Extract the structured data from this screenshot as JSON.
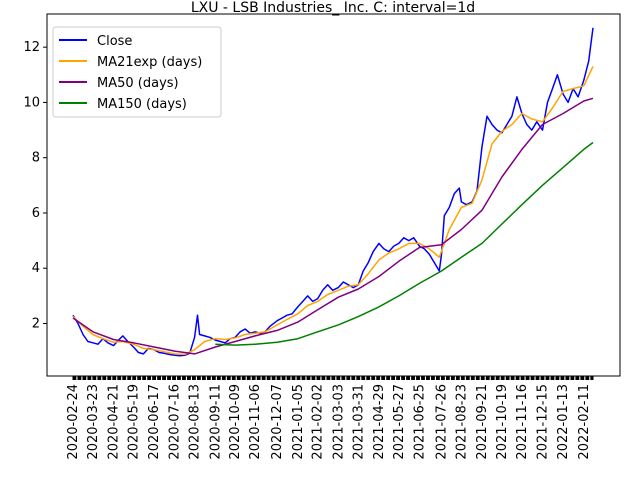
{
  "chart_data": {
    "type": "line",
    "title": "LXU - LSB Industries_ Inc. C: interval=1d",
    "xlabel": "",
    "ylabel": "",
    "ylim": [
      0.1,
      13.2
    ],
    "yticks": [
      2,
      4,
      6,
      8,
      10,
      12
    ],
    "grid": false,
    "legend_position": "top-left",
    "x_start": "2020-02-24",
    "x_end": "2022-02-24",
    "xticks": [
      "2020-02-24",
      "2020-03-23",
      "2020-04-21",
      "2020-05-19",
      "2020-06-17",
      "2020-07-16",
      "2020-08-13",
      "2020-09-11",
      "2020-10-09",
      "2020-11-06",
      "2020-12-07",
      "2021-01-05",
      "2021-02-02",
      "2021-03-03",
      "2021-03-31",
      "2021-04-29",
      "2021-05-27",
      "2021-06-25",
      "2021-07-26",
      "2021-08-23",
      "2021-09-21",
      "2021-10-19",
      "2021-11-16",
      "2021-12-15",
      "2022-01-13",
      "2022-02-11"
    ],
    "series": [
      {
        "name": "Close",
        "color": "#0000ff",
        "points": [
          [
            "2020-02-24",
            2.3
          ],
          [
            "2020-03-02",
            2.0
          ],
          [
            "2020-03-09",
            1.6
          ],
          [
            "2020-03-16",
            1.35
          ],
          [
            "2020-03-23",
            1.3
          ],
          [
            "2020-03-30",
            1.25
          ],
          [
            "2020-04-06",
            1.45
          ],
          [
            "2020-04-13",
            1.3
          ],
          [
            "2020-04-21",
            1.2
          ],
          [
            "2020-04-28",
            1.4
          ],
          [
            "2020-05-04",
            1.55
          ],
          [
            "2020-05-11",
            1.35
          ],
          [
            "2020-05-19",
            1.15
          ],
          [
            "2020-05-26",
            0.95
          ],
          [
            "2020-06-02",
            0.9
          ],
          [
            "2020-06-09",
            1.1
          ],
          [
            "2020-06-17",
            1.05
          ],
          [
            "2020-06-24",
            0.95
          ],
          [
            "2020-07-01",
            0.92
          ],
          [
            "2020-07-08",
            0.88
          ],
          [
            "2020-07-16",
            0.85
          ],
          [
            "2020-07-23",
            0.83
          ],
          [
            "2020-07-30",
            0.85
          ],
          [
            "2020-08-06",
            0.92
          ],
          [
            "2020-08-13",
            1.5
          ],
          [
            "2020-08-17",
            2.3
          ],
          [
            "2020-08-20",
            1.6
          ],
          [
            "2020-08-27",
            1.55
          ],
          [
            "2020-09-03",
            1.5
          ],
          [
            "2020-09-11",
            1.4
          ],
          [
            "2020-09-18",
            1.35
          ],
          [
            "2020-09-25",
            1.3
          ],
          [
            "2020-10-02",
            1.45
          ],
          [
            "2020-10-09",
            1.5
          ],
          [
            "2020-10-16",
            1.7
          ],
          [
            "2020-10-23",
            1.8
          ],
          [
            "2020-10-30",
            1.65
          ],
          [
            "2020-11-06",
            1.7
          ],
          [
            "2020-11-13",
            1.65
          ],
          [
            "2020-11-20",
            1.7
          ],
          [
            "2020-11-27",
            1.9
          ],
          [
            "2020-12-07",
            2.1
          ],
          [
            "2020-12-14",
            2.2
          ],
          [
            "2020-12-21",
            2.3
          ],
          [
            "2020-12-28",
            2.35
          ],
          [
            "2021-01-05",
            2.6
          ],
          [
            "2021-01-12",
            2.8
          ],
          [
            "2021-01-19",
            3.0
          ],
          [
            "2021-01-26",
            2.8
          ],
          [
            "2021-02-02",
            2.9
          ],
          [
            "2021-02-09",
            3.2
          ],
          [
            "2021-02-16",
            3.4
          ],
          [
            "2021-02-23",
            3.2
          ],
          [
            "2021-03-03",
            3.3
          ],
          [
            "2021-03-10",
            3.5
          ],
          [
            "2021-03-17",
            3.4
          ],
          [
            "2021-03-24",
            3.3
          ],
          [
            "2021-03-31",
            3.4
          ],
          [
            "2021-04-07",
            3.9
          ],
          [
            "2021-04-14",
            4.2
          ],
          [
            "2021-04-21",
            4.6
          ],
          [
            "2021-04-29",
            4.9
          ],
          [
            "2021-05-06",
            4.7
          ],
          [
            "2021-05-13",
            4.6
          ],
          [
            "2021-05-20",
            4.8
          ],
          [
            "2021-05-27",
            4.9
          ],
          [
            "2021-06-03",
            5.1
          ],
          [
            "2021-06-10",
            5.0
          ],
          [
            "2021-06-17",
            5.1
          ],
          [
            "2021-06-25",
            4.8
          ],
          [
            "2021-07-02",
            4.7
          ],
          [
            "2021-07-09",
            4.5
          ],
          [
            "2021-07-16",
            4.2
          ],
          [
            "2021-07-23",
            3.9
          ],
          [
            "2021-07-26",
            4.5
          ],
          [
            "2021-07-30",
            5.9
          ],
          [
            "2021-08-06",
            6.2
          ],
          [
            "2021-08-13",
            6.7
          ],
          [
            "2021-08-20",
            6.9
          ],
          [
            "2021-08-23",
            6.4
          ],
          [
            "2021-08-30",
            6.3
          ],
          [
            "2021-09-07",
            6.4
          ],
          [
            "2021-09-14",
            6.8
          ],
          [
            "2021-09-21",
            8.4
          ],
          [
            "2021-09-28",
            9.5
          ],
          [
            "2021-10-05",
            9.2
          ],
          [
            "2021-10-12",
            9.0
          ],
          [
            "2021-10-19",
            8.9
          ],
          [
            "2021-10-26",
            9.2
          ],
          [
            "2021-11-02",
            9.5
          ],
          [
            "2021-11-09",
            10.2
          ],
          [
            "2021-11-16",
            9.6
          ],
          [
            "2021-11-23",
            9.2
          ],
          [
            "2021-11-30",
            9.0
          ],
          [
            "2021-12-07",
            9.3
          ],
          [
            "2021-12-15",
            9.0
          ],
          [
            "2021-12-22",
            10.0
          ],
          [
            "2021-12-29",
            10.5
          ],
          [
            "2022-01-05",
            11.0
          ],
          [
            "2022-01-13",
            10.3
          ],
          [
            "2022-01-20",
            10.0
          ],
          [
            "2022-01-27",
            10.5
          ],
          [
            "2022-02-03",
            10.2
          ],
          [
            "2022-02-11",
            10.8
          ],
          [
            "2022-02-18",
            11.5
          ],
          [
            "2022-02-24",
            12.7
          ]
        ]
      },
      {
        "name": "MA21exp (days)",
        "color": "#ffa500",
        "points": [
          [
            "2020-02-24",
            2.25
          ],
          [
            "2020-03-09",
            1.9
          ],
          [
            "2020-03-23",
            1.6
          ],
          [
            "2020-04-06",
            1.45
          ],
          [
            "2020-04-21",
            1.32
          ],
          [
            "2020-05-04",
            1.35
          ],
          [
            "2020-05-19",
            1.25
          ],
          [
            "2020-06-02",
            1.1
          ],
          [
            "2020-06-17",
            1.05
          ],
          [
            "2020-07-01",
            0.98
          ],
          [
            "2020-07-16",
            0.9
          ],
          [
            "2020-07-30",
            0.88
          ],
          [
            "2020-08-13",
            1.05
          ],
          [
            "2020-08-27",
            1.35
          ],
          [
            "2020-09-11",
            1.45
          ],
          [
            "2020-09-25",
            1.42
          ],
          [
            "2020-10-09",
            1.48
          ],
          [
            "2020-10-23",
            1.6
          ],
          [
            "2020-11-06",
            1.65
          ],
          [
            "2020-11-20",
            1.7
          ],
          [
            "2020-12-07",
            1.95
          ],
          [
            "2020-12-21",
            2.15
          ],
          [
            "2021-01-05",
            2.35
          ],
          [
            "2021-01-19",
            2.65
          ],
          [
            "2021-02-02",
            2.8
          ],
          [
            "2021-02-16",
            3.05
          ],
          [
            "2021-03-03",
            3.2
          ],
          [
            "2021-03-17",
            3.35
          ],
          [
            "2021-03-31",
            3.4
          ],
          [
            "2021-04-14",
            3.8
          ],
          [
            "2021-04-29",
            4.3
          ],
          [
            "2021-05-13",
            4.55
          ],
          [
            "2021-05-27",
            4.7
          ],
          [
            "2021-06-10",
            4.9
          ],
          [
            "2021-06-25",
            4.9
          ],
          [
            "2021-07-09",
            4.7
          ],
          [
            "2021-07-23",
            4.4
          ],
          [
            "2021-08-06",
            5.4
          ],
          [
            "2021-08-23",
            6.2
          ],
          [
            "2021-09-07",
            6.35
          ],
          [
            "2021-09-21",
            7.2
          ],
          [
            "2021-10-05",
            8.5
          ],
          [
            "2021-10-19",
            8.95
          ],
          [
            "2021-11-02",
            9.2
          ],
          [
            "2021-11-16",
            9.6
          ],
          [
            "2021-11-30",
            9.4
          ],
          [
            "2021-12-15",
            9.3
          ],
          [
            "2021-12-29",
            9.8
          ],
          [
            "2022-01-13",
            10.4
          ],
          [
            "2022-01-27",
            10.5
          ],
          [
            "2022-02-11",
            10.6
          ],
          [
            "2022-02-24",
            11.3
          ]
        ]
      },
      {
        "name": "MA50 (days)",
        "color": "#800080",
        "points": [
          [
            "2020-02-24",
            2.2
          ],
          [
            "2020-03-23",
            1.7
          ],
          [
            "2020-04-21",
            1.42
          ],
          [
            "2020-05-19",
            1.3
          ],
          [
            "2020-06-17",
            1.15
          ],
          [
            "2020-07-16",
            1.0
          ],
          [
            "2020-08-13",
            0.9
          ],
          [
            "2020-09-11",
            1.15
          ],
          [
            "2020-10-09",
            1.35
          ],
          [
            "2020-11-06",
            1.55
          ],
          [
            "2020-12-07",
            1.75
          ],
          [
            "2021-01-05",
            2.05
          ],
          [
            "2021-02-02",
            2.5
          ],
          [
            "2021-03-03",
            2.95
          ],
          [
            "2021-03-31",
            3.25
          ],
          [
            "2021-04-29",
            3.7
          ],
          [
            "2021-05-27",
            4.25
          ],
          [
            "2021-06-25",
            4.75
          ],
          [
            "2021-07-26",
            4.85
          ],
          [
            "2021-08-23",
            5.4
          ],
          [
            "2021-09-21",
            6.1
          ],
          [
            "2021-10-19",
            7.3
          ],
          [
            "2021-11-16",
            8.3
          ],
          [
            "2021-12-15",
            9.2
          ],
          [
            "2022-01-13",
            9.6
          ],
          [
            "2022-02-11",
            10.05
          ],
          [
            "2022-02-24",
            10.15
          ]
        ]
      },
      {
        "name": "MA150 (days)",
        "color": "#008000",
        "points": [
          [
            "2020-09-11",
            1.25
          ],
          [
            "2020-10-09",
            1.22
          ],
          [
            "2020-11-06",
            1.25
          ],
          [
            "2020-12-07",
            1.32
          ],
          [
            "2021-01-05",
            1.45
          ],
          [
            "2021-02-02",
            1.7
          ],
          [
            "2021-03-03",
            1.95
          ],
          [
            "2021-03-31",
            2.25
          ],
          [
            "2021-04-29",
            2.6
          ],
          [
            "2021-05-27",
            3.0
          ],
          [
            "2021-06-25",
            3.45
          ],
          [
            "2021-07-26",
            3.9
          ],
          [
            "2021-08-23",
            4.4
          ],
          [
            "2021-09-21",
            4.9
          ],
          [
            "2021-10-19",
            5.6
          ],
          [
            "2021-11-16",
            6.3
          ],
          [
            "2021-12-15",
            7.0
          ],
          [
            "2022-01-13",
            7.65
          ],
          [
            "2022-02-11",
            8.3
          ],
          [
            "2022-02-24",
            8.55
          ]
        ]
      }
    ]
  }
}
